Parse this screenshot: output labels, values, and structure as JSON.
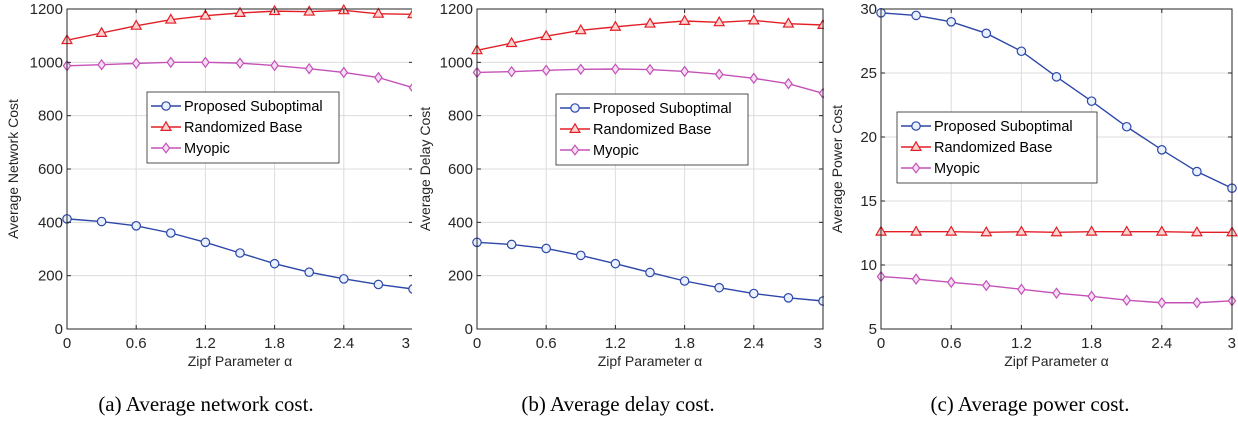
{
  "chart_data": [
    {
      "type": "line",
      "caption": "(a) Average network cost.",
      "xlabel": "Zipf Parameter α",
      "ylabel": "Average Network Cost",
      "xlim": [
        0,
        3
      ],
      "ylim": [
        0,
        1200
      ],
      "xticks": [
        0,
        0.6,
        1.2,
        1.8,
        2.4,
        3
      ],
      "xtick_labels": [
        "0",
        "0.6",
        "1.2",
        "1.8",
        "2.4",
        "3"
      ],
      "yticks": [
        0,
        200,
        400,
        600,
        800,
        1000,
        1200
      ],
      "ytick_labels": [
        "0",
        "200",
        "400",
        "600",
        "800",
        "1000",
        "1200"
      ],
      "grid": true,
      "legend_position": "center",
      "x": [
        0,
        0.3,
        0.6,
        0.9,
        1.2,
        1.5,
        1.8,
        2.1,
        2.4,
        2.7,
        3.0
      ],
      "series": [
        {
          "name": "Proposed Suboptimal",
          "color": "#2c47a8",
          "marker": "circle",
          "values": [
            413,
            403,
            387,
            360,
            325,
            285,
            245,
            213,
            188,
            167,
            150
          ]
        },
        {
          "name": "Randomized Base",
          "color": "#e21f26",
          "marker": "triangle",
          "values": [
            1083,
            1110,
            1137,
            1160,
            1175,
            1185,
            1192,
            1190,
            1195,
            1182,
            1180
          ]
        },
        {
          "name": "Myopic",
          "color": "#c451b8",
          "marker": "diamond",
          "values": [
            987,
            991,
            996,
            1000,
            1000,
            997,
            988,
            976,
            962,
            943,
            905
          ]
        }
      ]
    },
    {
      "type": "line",
      "caption": "(b) Average delay cost.",
      "xlabel": "Zipf Parameter α",
      "ylabel": "Average Delay Cost",
      "xlim": [
        0,
        3
      ],
      "ylim": [
        0,
        1200
      ],
      "xticks": [
        0,
        0.6,
        1.2,
        1.8,
        2.4,
        3
      ],
      "xtick_labels": [
        "0",
        "0.6",
        "1.2",
        "1.8",
        "2.4",
        "3"
      ],
      "yticks": [
        0,
        200,
        400,
        600,
        800,
        1000,
        1200
      ],
      "ytick_labels": [
        "0",
        "200",
        "400",
        "600",
        "800",
        "1000",
        "1200"
      ],
      "grid": true,
      "legend_position": "center",
      "x": [
        0,
        0.3,
        0.6,
        0.9,
        1.2,
        1.5,
        1.8,
        2.1,
        2.4,
        2.7,
        3.0
      ],
      "series": [
        {
          "name": "Proposed Suboptimal",
          "color": "#2c47a8",
          "marker": "circle",
          "values": [
            325,
            317,
            302,
            276,
            245,
            212,
            180,
            155,
            133,
            117,
            105
          ]
        },
        {
          "name": "Randomized Base",
          "color": "#e21f26",
          "marker": "triangle",
          "values": [
            1045,
            1072,
            1098,
            1120,
            1133,
            1145,
            1155,
            1150,
            1157,
            1145,
            1140
          ]
        },
        {
          "name": "Myopic",
          "color": "#c451b8",
          "marker": "diamond",
          "values": [
            962,
            965,
            970,
            974,
            975,
            973,
            966,
            955,
            940,
            920,
            884
          ]
        }
      ]
    },
    {
      "type": "line",
      "caption": "(c) Average power cost.",
      "xlabel": "Zipf Parameter α",
      "ylabel": "Average Power Cost",
      "xlim": [
        0,
        3
      ],
      "ylim": [
        5,
        30
      ],
      "xticks": [
        0,
        0.6,
        1.2,
        1.8,
        2.4,
        3
      ],
      "xtick_labels": [
        "0",
        "0.6",
        "1.2",
        "1.8",
        "2.4",
        "3"
      ],
      "yticks": [
        5,
        10,
        15,
        20,
        25,
        30
      ],
      "ytick_labels": [
        "5",
        "10",
        "15",
        "20",
        "25",
        "30"
      ],
      "grid": true,
      "legend_position": "center",
      "x": [
        0,
        0.3,
        0.6,
        0.9,
        1.2,
        1.5,
        1.8,
        2.1,
        2.4,
        2.7,
        3.0
      ],
      "series": [
        {
          "name": "Proposed Suboptimal",
          "color": "#2c47a8",
          "marker": "circle",
          "values": [
            29.7,
            29.5,
            29.0,
            28.1,
            26.7,
            24.7,
            22.8,
            20.8,
            19.0,
            17.3,
            16.0
          ]
        },
        {
          "name": "Randomized Base",
          "color": "#e21f26",
          "marker": "triangle",
          "values": [
            12.6,
            12.6,
            12.6,
            12.55,
            12.6,
            12.55,
            12.6,
            12.6,
            12.6,
            12.55,
            12.55
          ]
        },
        {
          "name": "Myopic",
          "color": "#c451b8",
          "marker": "diamond",
          "values": [
            9.1,
            8.9,
            8.65,
            8.4,
            8.1,
            7.8,
            7.55,
            7.25,
            7.05,
            7.05,
            7.2
          ]
        }
      ]
    }
  ]
}
